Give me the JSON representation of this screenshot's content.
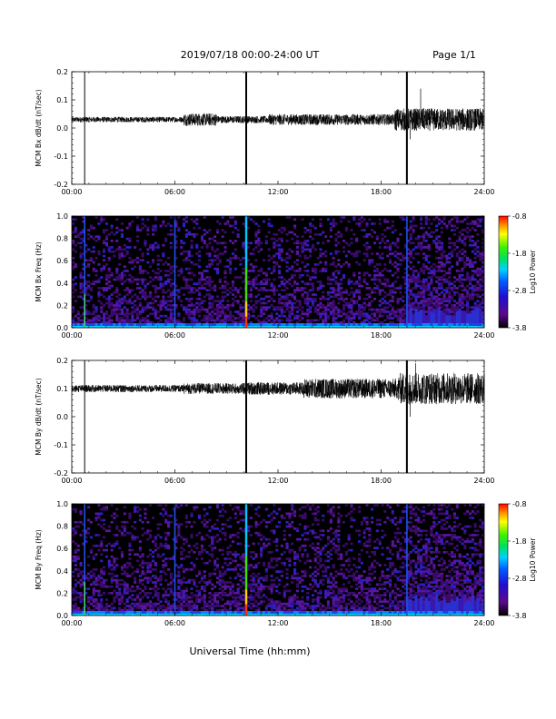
{
  "header": {
    "title": "2019/07/18   00:00-24:00 UT",
    "page": "Page 1/1"
  },
  "x_axis_label": "Universal Time (hh:mm)",
  "chart_data": [
    {
      "type": "line",
      "ylabel": "MCM Bx dB/dt (nT/sec)",
      "xlim": [
        0,
        24
      ],
      "ylim": [
        -0.2,
        0.2
      ],
      "x_ticks": [
        "00:00",
        "06:00",
        "12:00",
        "18:00",
        "24:00"
      ],
      "y_ticks": [
        "0.2",
        "0.1",
        "0.0",
        "-0.1",
        "-0.2"
      ],
      "baseline": 0.03,
      "noise_segments": [
        {
          "start": 0.0,
          "end": 6.5,
          "amplitude": 0.006
        },
        {
          "start": 6.5,
          "end": 8.5,
          "amplitude": 0.014
        },
        {
          "start": 8.5,
          "end": 11.5,
          "amplitude": 0.008
        },
        {
          "start": 11.5,
          "end": 18.8,
          "amplitude": 0.012
        },
        {
          "start": 18.8,
          "end": 24.0,
          "amplitude": 0.025
        }
      ],
      "spikes": [
        {
          "x": 0.75,
          "min": -0.2,
          "max": 0.2
        },
        {
          "x": 10.15,
          "min": -0.2,
          "max": 0.2
        },
        {
          "x": 19.5,
          "min": -0.2,
          "max": 0.2
        }
      ],
      "peak": {
        "x": 20.3,
        "value": 0.14
      },
      "trough": {
        "x": 19.7,
        "value": -0.04
      }
    },
    {
      "type": "heatmap",
      "ylabel": "MCM Bx Freq (Hz)",
      "xlim": [
        0,
        24
      ],
      "ylim": [
        0.0,
        1.0
      ],
      "x_ticks": [
        "00:00",
        "06:00",
        "12:00",
        "18:00",
        "24:00"
      ],
      "y_ticks": [
        "1.0",
        "0.8",
        "0.6",
        "0.4",
        "0.2",
        "0.0"
      ],
      "colorbar": {
        "label": "Log10 Power",
        "min": -3.8,
        "max": -0.8,
        "ticks": [
          "-0.8",
          "-1.8",
          "-2.8",
          "-3.8"
        ]
      },
      "bright_columns": [
        0.75,
        6.0,
        10.15,
        19.5
      ],
      "active_interval": [
        19.5,
        24.0
      ]
    },
    {
      "type": "line",
      "ylabel": "MCM By dB/dt (nT/sec)",
      "xlim": [
        0,
        24
      ],
      "ylim": [
        -0.2,
        0.2
      ],
      "x_ticks": [
        "00:00",
        "06:00",
        "12:00",
        "18:00",
        "24:00"
      ],
      "y_ticks": [
        "0.2",
        "0.1",
        "0.0",
        "-0.1",
        "-0.2"
      ],
      "baseline": 0.1,
      "noise_segments": [
        {
          "start": 0.0,
          "end": 6.5,
          "amplitude": 0.008
        },
        {
          "start": 6.5,
          "end": 10.0,
          "amplitude": 0.012
        },
        {
          "start": 10.0,
          "end": 13.5,
          "amplitude": 0.014
        },
        {
          "start": 13.5,
          "end": 19.0,
          "amplitude": 0.022
        },
        {
          "start": 19.0,
          "end": 24.0,
          "amplitude": 0.035
        }
      ],
      "spikes": [
        {
          "x": 0.75,
          "min": -0.2,
          "max": 0.2
        },
        {
          "x": 10.15,
          "min": -0.2,
          "max": 0.2
        },
        {
          "x": 19.5,
          "min": -0.2,
          "max": 0.2
        }
      ],
      "peak": {
        "x": 20.0,
        "value": 0.19
      },
      "trough": {
        "x": 19.7,
        "value": 0.0
      }
    },
    {
      "type": "heatmap",
      "ylabel": "MCM By Freq (Hz)",
      "xlim": [
        0,
        24
      ],
      "ylim": [
        0.0,
        1.0
      ],
      "x_ticks": [
        "00:00",
        "06:00",
        "12:00",
        "18:00",
        "24:00"
      ],
      "y_ticks": [
        "1.0",
        "0.8",
        "0.6",
        "0.4",
        "0.2",
        "0.0"
      ],
      "colorbar": {
        "label": "Log10 Power",
        "min": -3.8,
        "max": -0.8,
        "ticks": [
          "-0.8",
          "-1.8",
          "-2.8",
          "-3.8"
        ]
      },
      "bright_columns": [
        0.75,
        6.0,
        10.15,
        19.5
      ],
      "active_interval": [
        19.5,
        24.0
      ]
    }
  ]
}
